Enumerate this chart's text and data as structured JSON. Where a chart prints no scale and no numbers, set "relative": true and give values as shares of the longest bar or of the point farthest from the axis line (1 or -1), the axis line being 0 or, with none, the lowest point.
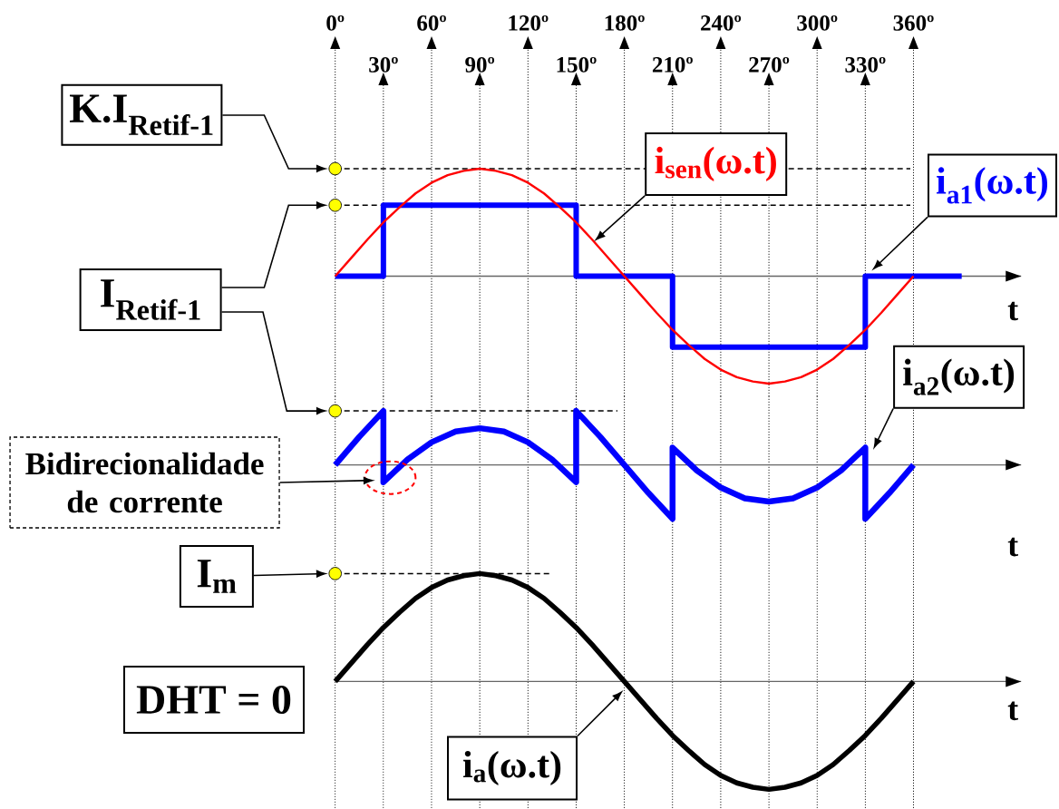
{
  "chart_data": [
    {
      "type": "line",
      "relative": true,
      "xlabel": "t",
      "xlim": [
        0,
        427
      ],
      "x2lim": [
        0,
        427
      ],
      "grid": true,
      "xticks": [
        {
          "value": 0,
          "label": "0º"
        },
        {
          "value": 60,
          "label": "60º"
        },
        {
          "value": 120,
          "label": "120º"
        },
        {
          "value": 180,
          "label": "180º"
        },
        {
          "value": 240,
          "label": "240º"
        },
        {
          "value": 300,
          "label": "300º"
        },
        {
          "value": 360,
          "label": "360º"
        }
      ],
      "x2ticks": [
        {
          "value": 30,
          "label": "30º"
        },
        {
          "value": 90,
          "label": "90º"
        },
        {
          "value": 150,
          "label": "150º"
        },
        {
          "value": 210,
          "label": "210º"
        },
        {
          "value": 270,
          "label": "270º"
        },
        {
          "value": 330,
          "label": "330º"
        }
      ],
      "series": [
        {
          "name": "i$_{a1}$(ω.t)",
          "type": "step",
          "color": "#0000ff",
          "x": [
            0,
            30,
            150,
            210,
            330,
            390
          ],
          "values": [
            0,
            0.66,
            0,
            -0.66,
            0,
            0
          ]
        },
        {
          "name": "i$_{sen}$(ω.t)",
          "color": "#ff0000",
          "x": [
            0,
            10,
            20,
            30,
            40,
            50,
            60,
            70,
            80,
            90,
            100,
            110,
            120,
            130,
            140,
            150,
            160,
            170,
            180,
            190,
            200,
            210,
            220,
            230,
            240,
            250,
            260,
            270,
            280,
            290,
            300,
            310,
            320,
            330,
            340,
            350,
            360
          ],
          "values": [
            0,
            0.17,
            0.34,
            0.5,
            0.64,
            0.77,
            0.87,
            0.94,
            0.98,
            1,
            0.98,
            0.94,
            0.87,
            0.77,
            0.64,
            0.5,
            0.34,
            0.17,
            0,
            -0.17,
            -0.34,
            -0.5,
            -0.64,
            -0.77,
            -0.87,
            -0.94,
            -0.98,
            -1,
            -0.98,
            -0.94,
            -0.87,
            -0.77,
            -0.64,
            -0.5,
            -0.34,
            -0.17,
            0
          ]
        }
      ],
      "ref_lines": [
        {
          "axis": "y",
          "value": 1,
          "color": "#000000",
          "line_style": "dashed"
        },
        {
          "axis": "y",
          "value": 0.66,
          "color": "#000000",
          "line_style": "dashed"
        }
      ],
      "annotations": [
        "K.I$_{Retif-1}$",
        "I$_{Retif-1}$"
      ]
    },
    {
      "type": "line",
      "relative": true,
      "xlabel": "t",
      "xlim": [
        0,
        427
      ],
      "grid": "x",
      "tick_labels": false,
      "xticks": [
        0,
        30,
        60,
        90,
        120,
        150,
        180,
        210,
        240,
        270,
        300,
        330,
        360
      ],
      "series": [
        {
          "name": "i$_{a2}$(ω.t)",
          "color": "#0000ff",
          "x": [
            0,
            15,
            30,
            30,
            45,
            60,
            75,
            90,
            105,
            120,
            135,
            150,
            150,
            165,
            180,
            195,
            210,
            210,
            225,
            240,
            255,
            270,
            285,
            300,
            315,
            330,
            330,
            345,
            360
          ],
          "values": [
            0,
            0.52,
            1,
            -0.32,
            0.1,
            0.42,
            0.62,
            0.68,
            0.62,
            0.42,
            0.1,
            -0.32,
            1,
            0.52,
            0,
            -0.52,
            -1,
            0.32,
            -0.1,
            -0.42,
            -0.62,
            -0.68,
            -0.62,
            -0.42,
            -0.1,
            0.32,
            -1,
            -0.52,
            0
          ]
        }
      ],
      "ref_lines": [
        {
          "axis": "y",
          "value": 1,
          "color": "#000000",
          "line_style": "dashed"
        }
      ],
      "annotations": [
        "Bidirecionalidade de corrente"
      ]
    },
    {
      "type": "line",
      "relative": true,
      "xlabel": "t",
      "xlim": [
        0,
        427
      ],
      "grid": "x",
      "tick_labels": false,
      "xticks": [
        0,
        30,
        60,
        90,
        120,
        150,
        180,
        210,
        240,
        270,
        300,
        330,
        360
      ],
      "series": [
        {
          "name": "i$_{a}$(ω.t)",
          "color": "#000000",
          "x": [
            0,
            10,
            20,
            30,
            40,
            50,
            60,
            70,
            80,
            90,
            100,
            110,
            120,
            130,
            140,
            150,
            160,
            170,
            180,
            190,
            200,
            210,
            220,
            230,
            240,
            250,
            260,
            270,
            280,
            290,
            300,
            310,
            320,
            330,
            340,
            350,
            360
          ],
          "values": [
            0,
            0.17,
            0.34,
            0.5,
            0.64,
            0.77,
            0.87,
            0.94,
            0.98,
            1,
            0.98,
            0.94,
            0.87,
            0.77,
            0.64,
            0.5,
            0.34,
            0.17,
            0,
            -0.17,
            -0.34,
            -0.5,
            -0.64,
            -0.77,
            -0.87,
            -0.94,
            -0.98,
            -1,
            -0.98,
            -0.94,
            -0.87,
            -0.77,
            -0.64,
            -0.5,
            -0.34,
            -0.17,
            0
          ]
        }
      ],
      "ref_lines": [
        {
          "axis": "y",
          "value": 1,
          "label": "I$_{m}$",
          "color": "#000000",
          "line_style": "dashed"
        }
      ],
      "annotations": [
        "DHT = 0"
      ]
    }
  ]
}
